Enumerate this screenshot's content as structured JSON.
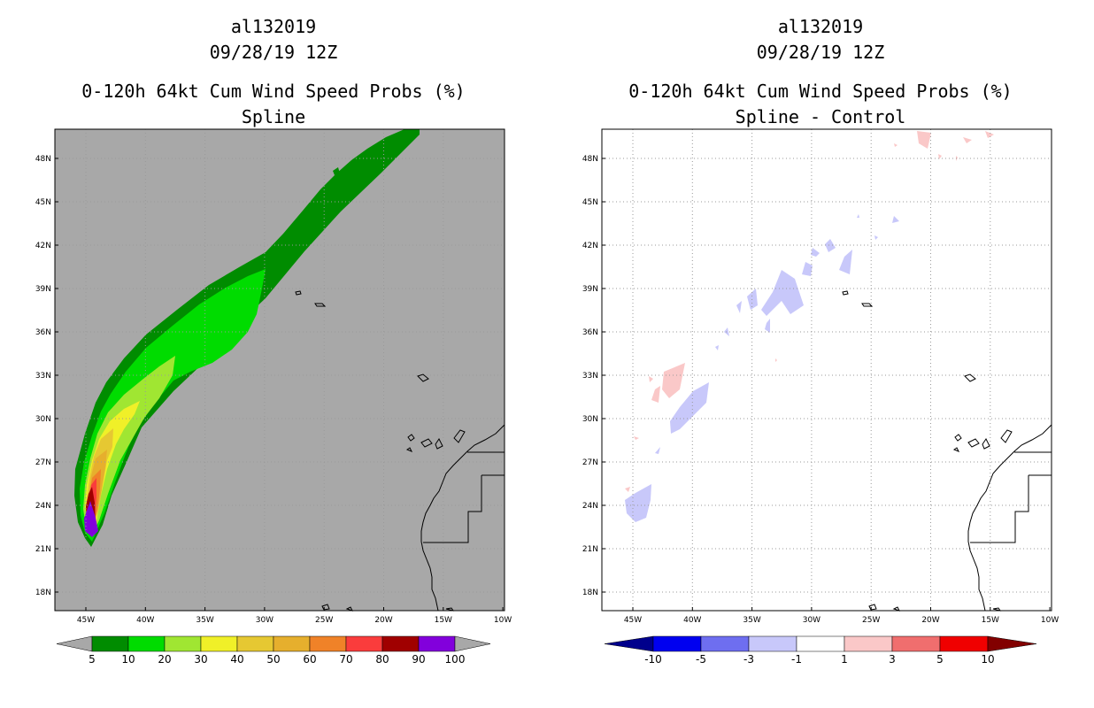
{
  "panels": [
    {
      "storm_id": "al132019",
      "datetime": "09/28/19 12Z",
      "product": "0-120h 64kt Cum Wind Speed Probs (%)",
      "subtitle": "Spline",
      "background": "#a8a8a8",
      "lat_labels": [
        "48N",
        "45N",
        "42N",
        "39N",
        "36N",
        "33N",
        "30N",
        "27N",
        "24N",
        "21N",
        "18N"
      ],
      "lon_labels": [
        "45W",
        "40W",
        "35W",
        "30W",
        "25W",
        "20W",
        "15W",
        "10W"
      ],
      "colorbar": {
        "colors": [
          "#008c00",
          "#00dc00",
          "#a0e632",
          "#f0f028",
          "#e6c832",
          "#e6af2d",
          "#f08228",
          "#fa3c3c",
          "#a00000",
          "#8200dc"
        ],
        "labels": [
          "5",
          "10",
          "20",
          "30",
          "40",
          "50",
          "60",
          "70",
          "80",
          "90",
          "100"
        ],
        "under_color": "#a8a8a8",
        "over_color": "#a8a8a8"
      }
    },
    {
      "storm_id": "al132019",
      "datetime": "09/28/19 12Z",
      "product": "0-120h 64kt Cum Wind Speed Probs (%)",
      "subtitle": "Spline - Control",
      "background": "#ffffff",
      "lat_labels": [
        "48N",
        "45N",
        "42N",
        "39N",
        "36N",
        "33N",
        "30N",
        "27N",
        "24N",
        "21N",
        "18N"
      ],
      "lon_labels": [
        "45W",
        "40W",
        "35W",
        "30W",
        "25W",
        "20W",
        "15W",
        "10W"
      ],
      "colorbar": {
        "colors": [
          "#0000f0",
          "#6e6ef0",
          "#c8c8fa",
          "#ffffff",
          "#fac8c8",
          "#f06e6e",
          "#f00000"
        ],
        "labels": [
          "-10",
          "-5",
          "-3",
          "-1",
          "1",
          "3",
          "5",
          "10"
        ],
        "under_color": "#00008c",
        "over_color": "#820000"
      }
    }
  ]
}
